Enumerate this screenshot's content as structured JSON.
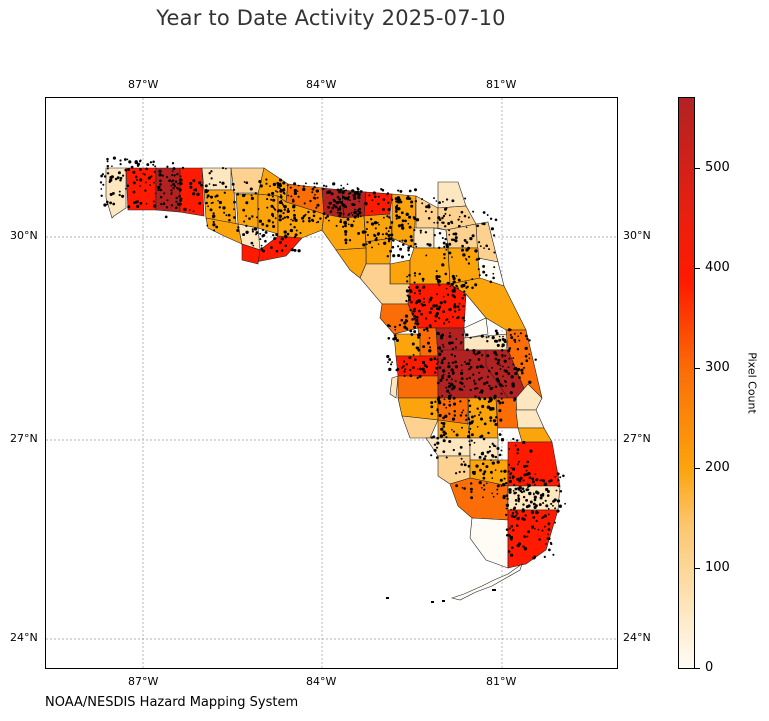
{
  "title": "Year to Date Activity 2025-07-10",
  "footer": "NOAA/NESDIS Hazard Mapping System",
  "map": {
    "lon_ticks": [
      {
        "label": "87°W",
        "value": -87
      },
      {
        "label": "84°W",
        "value": -84
      },
      {
        "label": "81°W",
        "value": -81
      }
    ],
    "lat_ticks": [
      {
        "label": "30°N",
        "value": 30
      },
      {
        "label": "27°N",
        "value": 27
      },
      {
        "label": "24°N",
        "value": 24
      }
    ],
    "region": "Florida counties",
    "gridlines": true
  },
  "colorbar": {
    "title": "Pixel Count",
    "ticks": [
      "0",
      "100",
      "200",
      "300",
      "400",
      "500"
    ],
    "range": [
      0,
      570
    ],
    "colors": [
      "#fffcf5",
      "#fde7c0",
      "#fba40c",
      "#fb6e07",
      "#ff1a00",
      "#b22222"
    ]
  }
}
